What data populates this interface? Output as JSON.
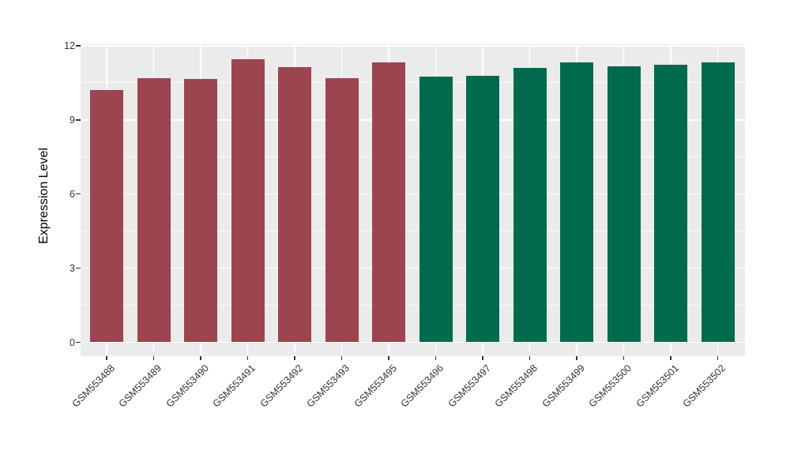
{
  "chart_data": {
    "type": "bar",
    "title": "",
    "xlabel": "",
    "ylabel": "Expression Level",
    "categories": [
      "GSM553488",
      "GSM553489",
      "GSM553490",
      "GSM553491",
      "GSM553492",
      "GSM553493",
      "GSM553495",
      "GSM553496",
      "GSM553497",
      "GSM553498",
      "GSM553499",
      "GSM553500",
      "GSM553501",
      "GSM553502"
    ],
    "values": [
      10.22,
      10.7,
      10.65,
      11.45,
      11.12,
      10.7,
      11.32,
      10.76,
      10.79,
      11.11,
      11.34,
      11.16,
      11.24,
      11.32
    ],
    "groups": [
      "group1",
      "group1",
      "group1",
      "group1",
      "group1",
      "group1",
      "group1",
      "group2",
      "group2",
      "group2",
      "group2",
      "group2",
      "group2",
      "group2"
    ],
    "group_colors": {
      "group1": "#9C4450",
      "group2": "#006B4C"
    },
    "ylim": [
      0,
      12
    ],
    "yticks": [
      0,
      3,
      6,
      9,
      12
    ],
    "minor_gridlines": [
      1.5,
      4.5,
      7.5,
      10.5
    ],
    "grid": true,
    "legend": "none",
    "panel_background": "#EBEBEB",
    "gridline_color": "#FFFFFF",
    "axis_text_color": "#333333"
  }
}
